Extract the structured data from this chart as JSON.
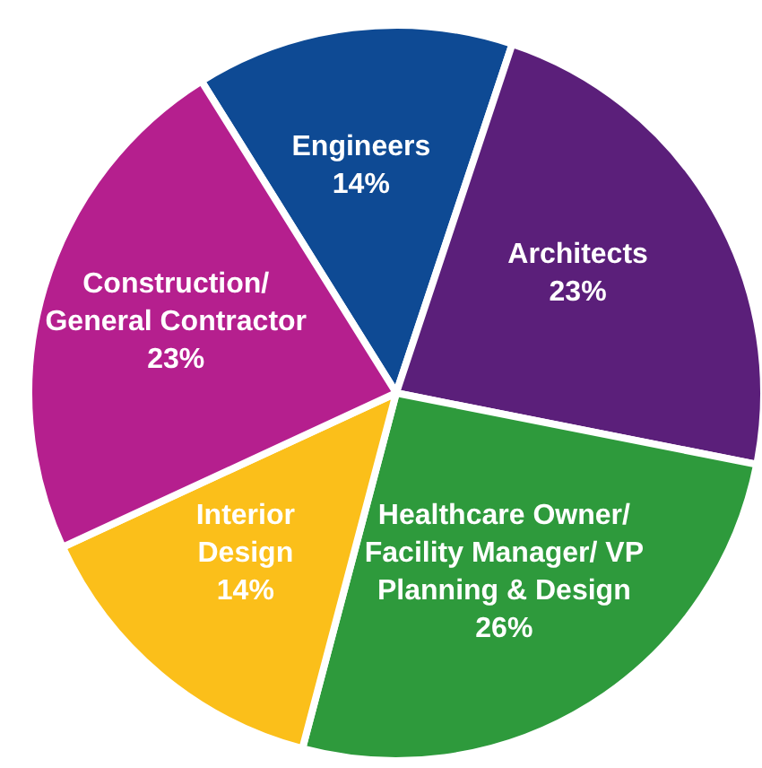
{
  "chart_data": {
    "type": "pie",
    "categories": [
      "Engineers",
      "Architects",
      "Healthcare Owner/\nFacility Manager/ VP\nPlanning & Design",
      "Interior\nDesign",
      "Construction/\nGeneral Contractor"
    ],
    "values": [
      14,
      23,
      26,
      14,
      23
    ],
    "value_labels": [
      "14%",
      "23%",
      "26%",
      "14%",
      "23%"
    ],
    "colors": [
      "#0e4a94",
      "#5b1f7a",
      "#2e9a3c",
      "#fbbf1a",
      "#b51f8e"
    ]
  }
}
